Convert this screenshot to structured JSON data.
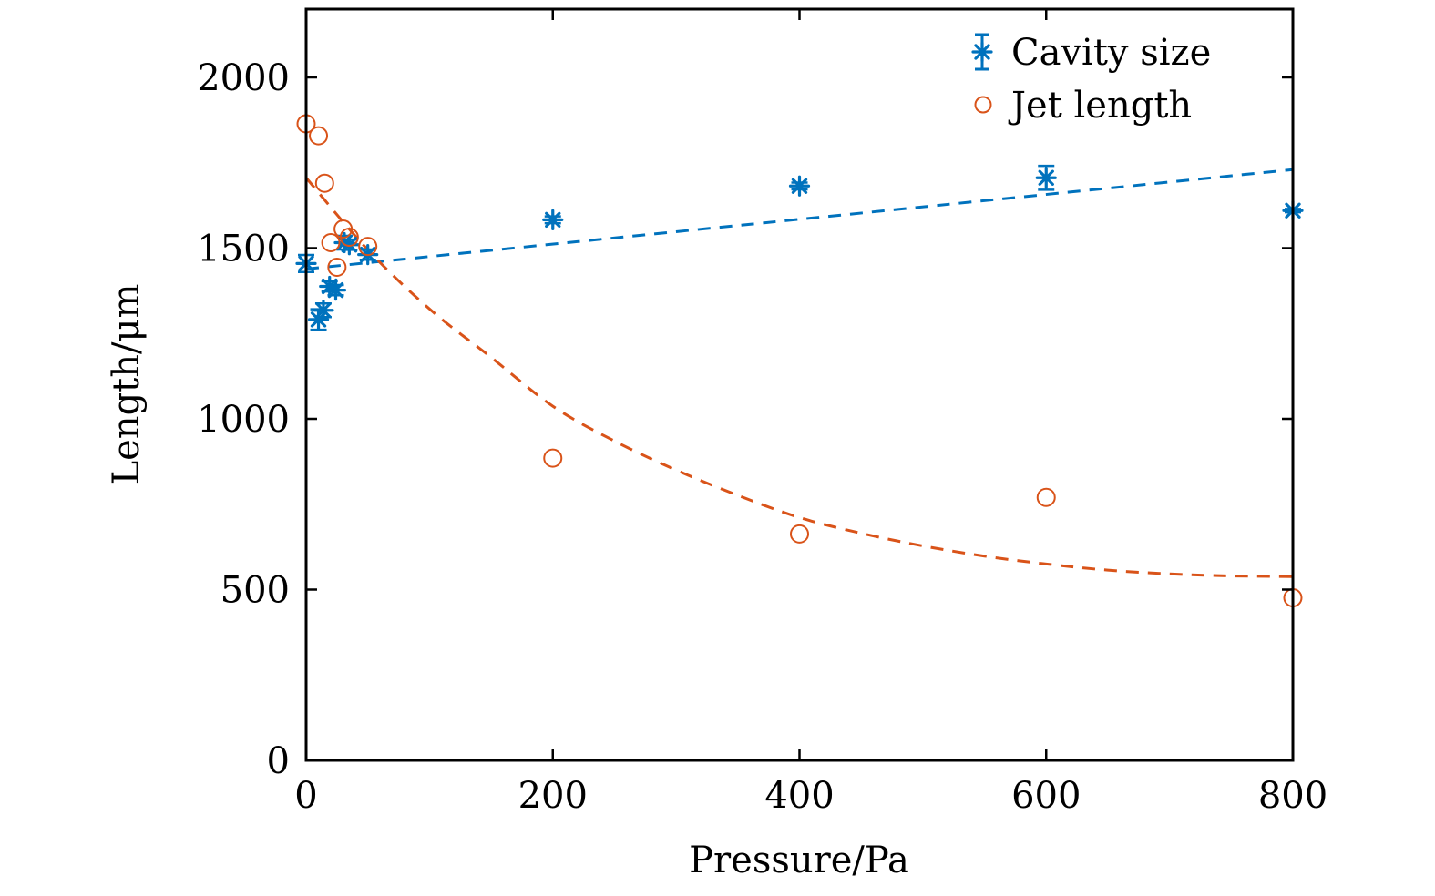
{
  "chart_data": {
    "type": "scatter",
    "title": "",
    "xlabel": "Pressure/Pa",
    "ylabel": "Length/μm",
    "xlim": [
      0,
      800
    ],
    "ylim": [
      0,
      2200
    ],
    "xticks": [
      0,
      200,
      400,
      600,
      800
    ],
    "yticks": [
      0,
      500,
      1000,
      1500,
      2000
    ],
    "xtick_labels": [
      "0",
      "200",
      "400",
      "600",
      "800"
    ],
    "ytick_labels": [
      "0",
      "500",
      "1000",
      "1500",
      "2000"
    ],
    "grid": false,
    "legend_position": "top-right",
    "series": [
      {
        "name": "Cavity size",
        "marker": "asterisk-with-errorbar",
        "color": "#0072BD",
        "x": [
          0,
          10,
          14,
          19,
          24,
          31,
          35,
          50,
          200,
          400,
          600,
          800
        ],
        "y": [
          1455,
          1291,
          1318,
          1388,
          1377,
          1516,
          1510,
          1481,
          1583,
          1682,
          1706,
          1610
        ],
        "error": [
          25,
          30,
          20,
          15,
          15,
          20,
          15,
          15,
          10,
          10,
          35,
          5
        ],
        "fit": {
          "type": "linear",
          "style": "dashed",
          "x": [
            0,
            800
          ],
          "y": [
            1439,
            1730
          ]
        }
      },
      {
        "name": "Jet length",
        "marker": "open-circle",
        "color": "#D95319",
        "x": [
          0,
          10,
          15,
          20,
          25,
          30,
          35,
          50,
          200,
          400,
          600,
          800
        ],
        "y": [
          1864,
          1829,
          1690,
          1516,
          1444,
          1556,
          1532,
          1505,
          885,
          663,
          770,
          476
        ],
        "fit": {
          "type": "exponential-decay",
          "style": "dashed",
          "x": [
            0,
            50,
            100,
            150,
            200,
            250,
            300,
            350,
            400,
            450,
            500,
            550,
            600,
            650,
            700,
            750,
            800
          ],
          "y": [
            1706,
            1495,
            1322,
            1180,
            1037,
            935,
            850,
            776,
            711,
            665,
            628,
            598,
            575,
            557,
            546,
            540,
            538
          ]
        }
      }
    ]
  }
}
